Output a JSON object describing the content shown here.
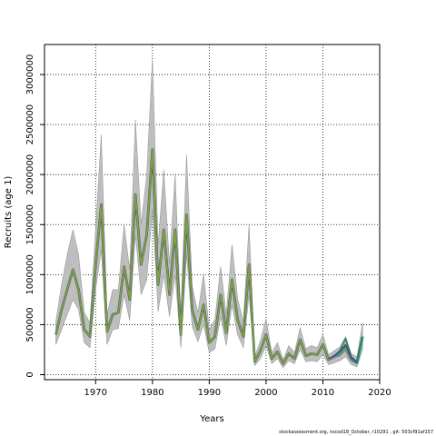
{
  "chart_data": {
    "type": "line",
    "xlabel": "Years",
    "ylabel": "Recruits (age 1)",
    "xlim": [
      1961,
      2020
    ],
    "ylim": [
      -50000,
      3300000
    ],
    "x_ticks": [
      1970,
      1980,
      1990,
      2000,
      2010,
      2020
    ],
    "x_tick_labels": [
      "1970",
      "1980",
      "1990",
      "2000",
      "2010",
      "2020"
    ],
    "y_ticks": [
      0,
      500000,
      1000000,
      1500000,
      2000000,
      2500000,
      3000000
    ],
    "y_tick_labels": [
      "0",
      "500000",
      "1000000",
      "1500000",
      "2000000",
      "2500000",
      "3000000"
    ],
    "grid": true,
    "grid_style": "dotted",
    "colors": {
      "band": "#bebebe",
      "band_edge": "#9a9a9a",
      "main_line": "#7fa03a",
      "retro_lines": [
        "#1a2a8a",
        "#2aa0a0",
        "#1e8a5a",
        "#5a3a9a",
        "#000000"
      ]
    },
    "years": [
      1963,
      1964,
      1965,
      1966,
      1967,
      1968,
      1969,
      1970,
      1971,
      1972,
      1973,
      1974,
      1975,
      1976,
      1977,
      1978,
      1979,
      1980,
      1981,
      1982,
      1983,
      1984,
      1985,
      1986,
      1987,
      1988,
      1989,
      1990,
      1991,
      1992,
      1993,
      1994,
      1995,
      1996,
      1997,
      1998,
      1999,
      2000,
      2001,
      2002,
      2003,
      2004,
      2005,
      2006,
      2007,
      2008,
      2009,
      2010,
      2011,
      2012,
      2013,
      2014,
      2015,
      2016,
      2017
    ],
    "series": [
      {
        "values": [
          400000,
          650000,
          850000,
          1050000,
          850000,
          450000,
          380000,
          1100000,
          1700000,
          430000,
          600000,
          620000,
          1080000,
          750000,
          1800000,
          1100000,
          1400000,
          2250000,
          900000,
          1450000,
          800000,
          1450000,
          400000,
          1600000,
          650000,
          450000,
          700000,
          320000,
          380000,
          800000,
          420000,
          950000,
          550000,
          380000,
          1100000,
          130000,
          240000,
          400000,
          160000,
          230000,
          110000,
          210000,
          160000,
          350000,
          190000,
          210000,
          200000,
          300000,
          150000,
          180000,
          200000,
          260000,
          150000,
          120000,
          380000
        ],
        "lower": [
          300000,
          450000,
          600000,
          750000,
          650000,
          320000,
          270000,
          850000,
          1250000,
          300000,
          450000,
          460000,
          800000,
          540000,
          1400000,
          800000,
          950000,
          1650000,
          630000,
          1000000,
          580000,
          1000000,
          270000,
          1200000,
          480000,
          330000,
          500000,
          220000,
          260000,
          580000,
          290000,
          700000,
          400000,
          270000,
          800000,
          90000,
          160000,
          290000,
          110000,
          160000,
          70000,
          140000,
          110000,
          250000,
          130000,
          140000,
          130000,
          200000,
          100000,
          120000,
          140000,
          180000,
          100000,
          80000,
          250000
        ],
        "upper": [
          530000,
          900000,
          1200000,
          1450000,
          1200000,
          620000,
          520000,
          1450000,
          2400000,
          600000,
          850000,
          850000,
          1500000,
          1050000,
          2550000,
          1500000,
          2000000,
          3150000,
          1300000,
          2050000,
          1100000,
          2000000,
          570000,
          2200000,
          880000,
          620000,
          1000000,
          450000,
          550000,
          1080000,
          600000,
          1300000,
          760000,
          530000,
          1500000,
          180000,
          340000,
          560000,
          220000,
          320000,
          150000,
          290000,
          220000,
          470000,
          260000,
          290000,
          270000,
          400000,
          200000,
          240000,
          280000,
          380000,
          210000,
          180000,
          520000
        ]
      }
    ],
    "retro_series": [
      {
        "years": [
          2012,
          2013,
          2014,
          2015,
          2016,
          2017
        ],
        "values": [
          170000,
          210000,
          290000,
          160000,
          110000,
          350000
        ]
      },
      {
        "years": [
          2012,
          2013,
          2014,
          2015,
          2016,
          2017
        ],
        "values": [
          190000,
          240000,
          360000,
          180000,
          130000,
          380000
        ]
      },
      {
        "years": [
          2011,
          2012,
          2013,
          2014,
          2015,
          2016
        ],
        "values": [
          160000,
          190000,
          230000,
          300000,
          170000,
          120000
        ]
      }
    ]
  },
  "footer": {
    "credit": "stockassessment.org, nscod18_October, r10291 , git: 503cf91af157"
  }
}
